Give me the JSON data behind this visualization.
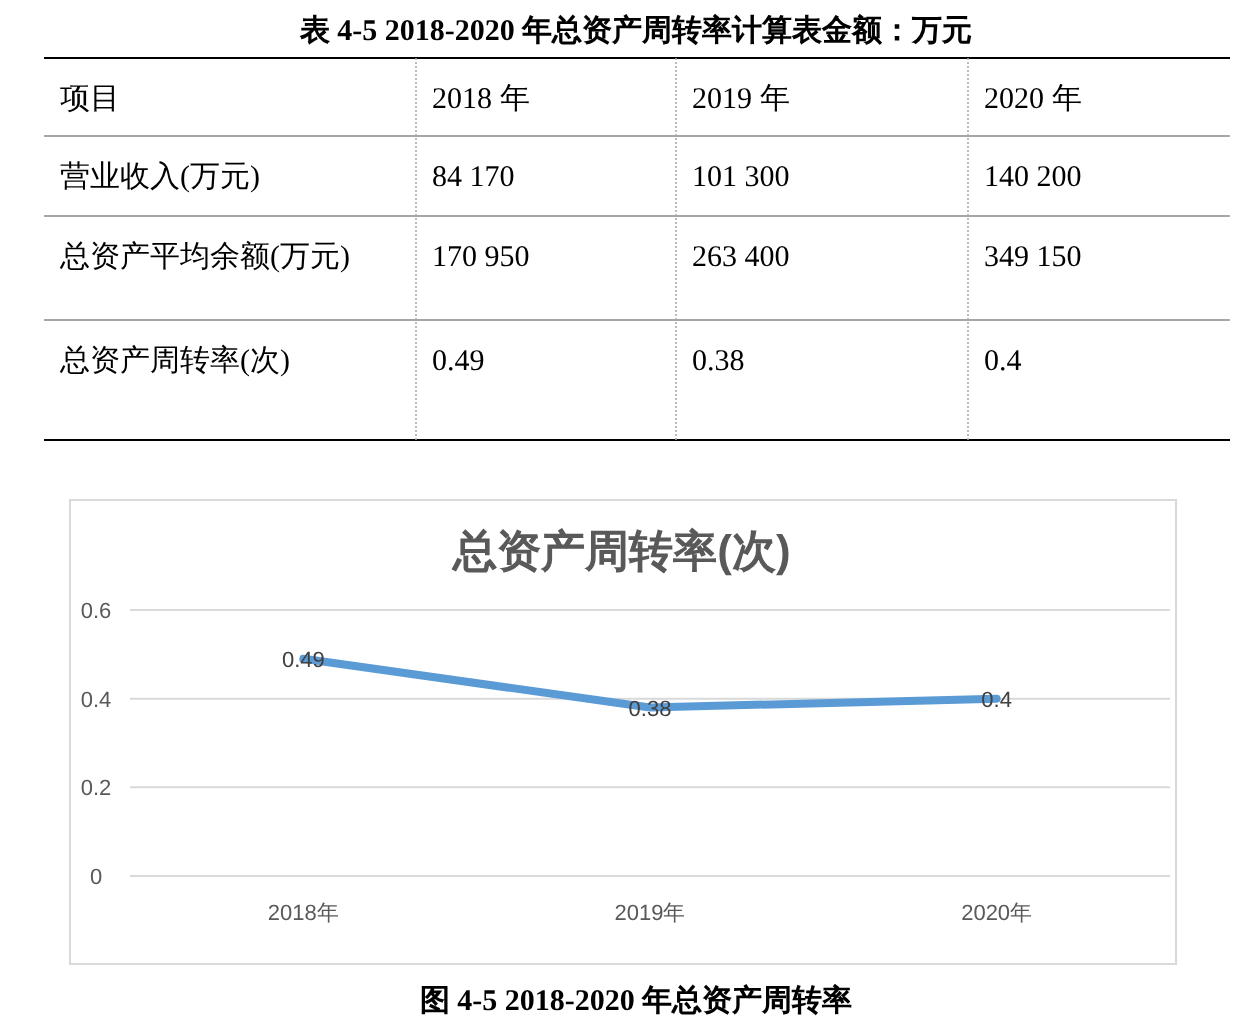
{
  "chart_data": [
    {
      "type": "other",
      "title": "表 4-5 2018-2020 年总资产周转率计算表金额：万元",
      "categories": [
        "项目",
        "2018 年",
        "2019 年",
        "2020 年"
      ],
      "y_categories": [
        "营业收入(万元)",
        "总资产平均余额(万元)",
        "总资产周转率(次)"
      ],
      "cell_labels": [
        [
          "84 170",
          "101 300",
          "140 200"
        ],
        [
          "170 950",
          "263 400",
          "349 150"
        ],
        [
          "0.49",
          "0.38",
          "0.4"
        ]
      ]
    },
    {
      "type": "line",
      "title": "总资产周转率(次)",
      "categories": [
        "2018年",
        "2019年",
        "2020年"
      ],
      "values": [
        0.49,
        0.38,
        0.4
      ],
      "color": "#5b9bd5",
      "data_labels": true,
      "ylim": [
        0,
        0.6
      ],
      "yticks": [
        0,
        0.2,
        0.4,
        0.6
      ],
      "grid": "y",
      "annotations": [
        "图 4-5 2018-2020 年总资产周转率"
      ]
    }
  ]
}
